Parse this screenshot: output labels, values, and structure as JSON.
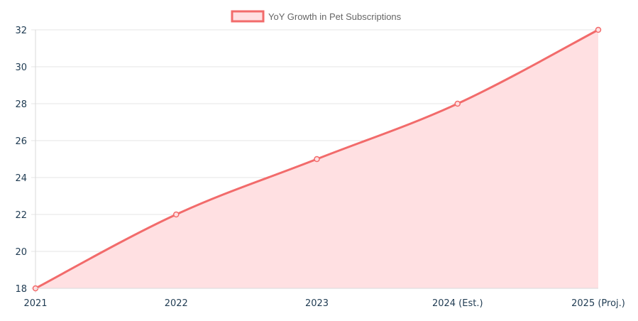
{
  "chart_data": {
    "type": "area",
    "categories": [
      "2021",
      "2022",
      "2023",
      "2024 (Est.)",
      "2025 (Proj.)"
    ],
    "series": [
      {
        "name": "YoY Growth in Pet Subscriptions",
        "values": [
          18,
          22,
          25,
          28,
          32
        ],
        "line_color": "#f26b6b",
        "fill_color": "#ffe0e2"
      }
    ],
    "ylim": [
      18,
      32
    ],
    "yticks": [
      18,
      20,
      22,
      24,
      26,
      28,
      30,
      32
    ],
    "xlabel": "",
    "ylabel": "",
    "grid": true,
    "legend_position": "top-center",
    "grid_color": "#e6e6e6",
    "tick_color": "#1f3b52"
  }
}
